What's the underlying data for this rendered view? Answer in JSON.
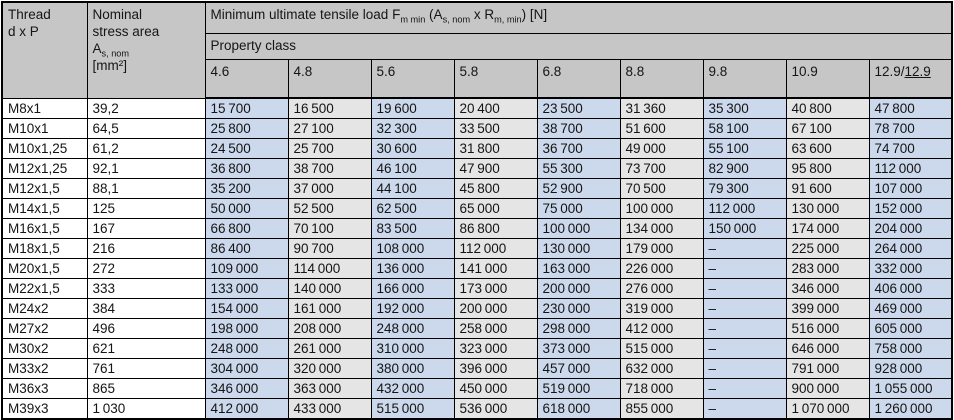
{
  "table": {
    "thread_header": {
      "line1": "Thread",
      "line2": "d x P"
    },
    "area_header": {
      "line1": "Nominal",
      "line2": "stress area",
      "symbol": "A",
      "symbol_sub": "s, nom",
      "unit": "[mm²]"
    },
    "load_title": {
      "segments": [
        {
          "t": "Minimum ultimate tensile load F"
        },
        {
          "t": "m min",
          "sub": true
        },
        {
          "t": " (A"
        },
        {
          "t": "s, nom",
          "sub": true
        },
        {
          "t": " x R"
        },
        {
          "t": "m, min",
          "sub": true
        },
        {
          "t": ") [N]"
        }
      ]
    },
    "property_class_label": "Property class",
    "classes": [
      {
        "label": "4.6"
      },
      {
        "label": "4.8"
      },
      {
        "label": "5.6"
      },
      {
        "label": "5.8"
      },
      {
        "label": "6.8"
      },
      {
        "label": "8.8"
      },
      {
        "label": "9.8"
      },
      {
        "label": "10.9"
      },
      {
        "label": "12.9/",
        "underline": "12.9"
      }
    ],
    "rows": [
      {
        "thread": "M8x1",
        "area": "39,2",
        "values": [
          "15 700",
          "16 500",
          "19 600",
          "20 400",
          "23 500",
          "31 360",
          "35 300",
          "40 800",
          "47 800"
        ]
      },
      {
        "thread": "M10x1",
        "area": "64,5",
        "values": [
          "25 800",
          "27 100",
          "32 300",
          "33 500",
          "38 700",
          "51 600",
          "58 100",
          "67 100",
          "78 700"
        ]
      },
      {
        "thread": "M10x1,25",
        "area": "61,2",
        "values": [
          "24 500",
          "25 700",
          "30 600",
          "31 800",
          "36 700",
          "49 000",
          "55 100",
          "63 600",
          "74 700"
        ]
      },
      {
        "thread": "M12x1,25",
        "area": "92,1",
        "values": [
          "36 800",
          "38 700",
          "46 100",
          "47 900",
          "55 300",
          "73 700",
          "82 900",
          "95 800",
          "112 000"
        ]
      },
      {
        "thread": "M12x1,5",
        "area": "88,1",
        "values": [
          "35 200",
          "37 000",
          "44 100",
          "45 800",
          "52 900",
          "70 500",
          "79 300",
          "91 600",
          "107 000"
        ]
      },
      {
        "thread": "M14x1,5",
        "area": "125",
        "values": [
          "50 000",
          "52 500",
          "62 500",
          "65 000",
          "75 000",
          "100 000",
          "112 000",
          "130 000",
          "152 000"
        ]
      },
      {
        "thread": "M16x1,5",
        "area": "167",
        "values": [
          "66 800",
          "70 100",
          "83 500",
          "86 800",
          "100 000",
          "134 000",
          "150 000",
          "174 000",
          "204 000"
        ]
      },
      {
        "thread": "M18x1,5",
        "area": "216",
        "values": [
          "86 400",
          "90 700",
          "108 000",
          "112 000",
          "130 000",
          "179 000",
          "–",
          "225 000",
          "264 000"
        ]
      },
      {
        "thread": "M20x1,5",
        "area": "272",
        "values": [
          "109 000",
          "114 000",
          "136 000",
          "141 000",
          "163 000",
          "226 000",
          "–",
          "283 000",
          "332 000"
        ]
      },
      {
        "thread": "M22x1,5",
        "area": "333",
        "values": [
          "133 000",
          "140 000",
          "166 000",
          "173 000",
          "200 000",
          "276 000",
          "–",
          "346 000",
          "406 000"
        ]
      },
      {
        "thread": "M24x2",
        "area": "384",
        "values": [
          "154 000",
          "161 000",
          "192 000",
          "200 000",
          "230 000",
          "319 000",
          "–",
          "399 000",
          "469 000"
        ]
      },
      {
        "thread": "M27x2",
        "area": "496",
        "values": [
          "198 000",
          "208 000",
          "248 000",
          "258 000",
          "298 000",
          "412 000",
          "–",
          "516 000",
          "605 000"
        ]
      },
      {
        "thread": "M30x2",
        "area": "621",
        "values": [
          "248 000",
          "261 000",
          "310 000",
          "323 000",
          "373 000",
          "515 000",
          "–",
          "646 000",
          "758 000"
        ]
      },
      {
        "thread": "M33x2",
        "area": "761",
        "values": [
          "304 000",
          "320 000",
          "380 000",
          "396 000",
          "457 000",
          "632 000",
          "–",
          "791 000",
          "928 000"
        ]
      },
      {
        "thread": "M36x3",
        "area": "865",
        "values": [
          "346 000",
          "363 000",
          "432 000",
          "450 000",
          "519 000",
          "718 000",
          "–",
          "900 000",
          "1 055 000"
        ]
      },
      {
        "thread": "M39x3",
        "area": "1 030",
        "values": [
          "412 000",
          "433 000",
          "515 000",
          "536 000",
          "618 000",
          "855 000",
          "–",
          "1 070 000",
          "1 260 000"
        ]
      }
    ]
  },
  "colors": {
    "header_bg": "#c6c6c6",
    "blue_column_bg": "#ccd9ec",
    "gray_column_bg": "#e5e5e5",
    "border": "#000000"
  }
}
